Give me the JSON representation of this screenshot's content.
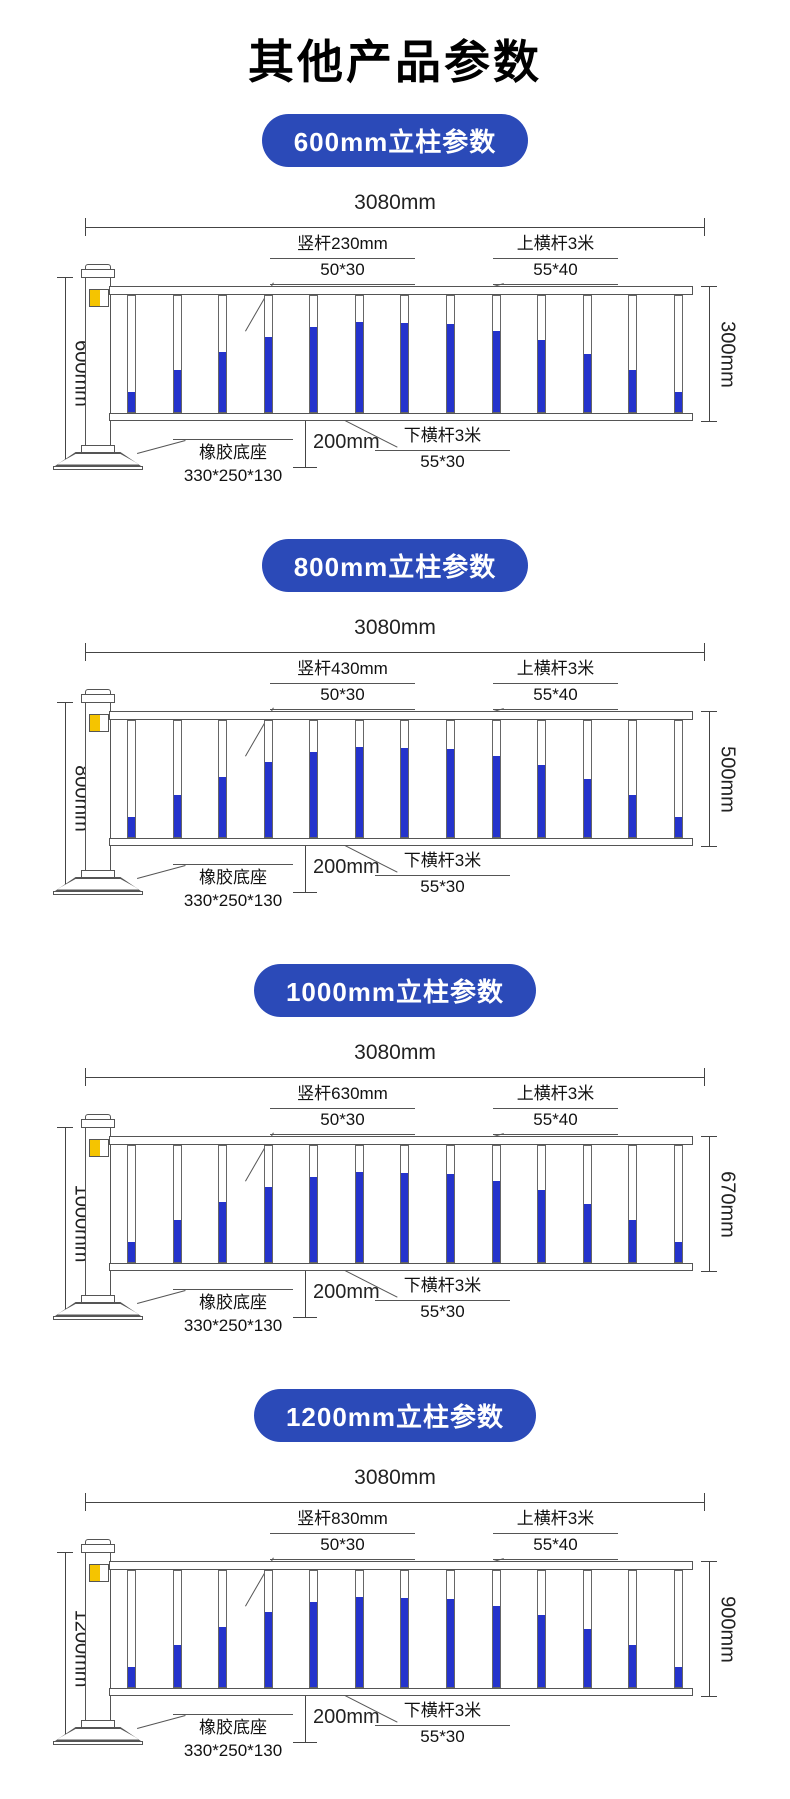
{
  "page": {
    "title": "其他产品参数"
  },
  "colors": {
    "badge_blue": "#2b4ab8",
    "bar_blue": "#2433cc",
    "accent_yellow": "#f5c400",
    "line": "#555555"
  },
  "shared": {
    "total_width": "3080mm",
    "top_rail_title": "上横杆3米",
    "top_rail_size": "55*40",
    "bottom_rail_title": "下横杆3米",
    "bottom_rail_size": "55*30",
    "base_title": "橡胶底座",
    "base_size": "330*250*130",
    "ground_gap": "200mm",
    "vbar_size": "50*30",
    "bar_fills": [
      0.17,
      0.36,
      0.52,
      0.65,
      0.73,
      0.78,
      0.77,
      0.76,
      0.7,
      0.62,
      0.5,
      0.36,
      0.17
    ]
  },
  "sections": [
    {
      "badge": "600mm立柱参数",
      "post_height": "600mm",
      "inner_height": "300mm",
      "vbar_title": "竖杆230mm"
    },
    {
      "badge": "800mm立柱参数",
      "post_height": "800mm",
      "inner_height": "500mm",
      "vbar_title": "竖杆430mm"
    },
    {
      "badge": "1000mm立柱参数",
      "post_height": "1000mm",
      "inner_height": "670mm",
      "vbar_title": "竖杆630mm"
    },
    {
      "badge": "1200mm立柱参数",
      "post_height": "1200mm",
      "inner_height": "900mm",
      "vbar_title": "竖杆830mm"
    }
  ]
}
